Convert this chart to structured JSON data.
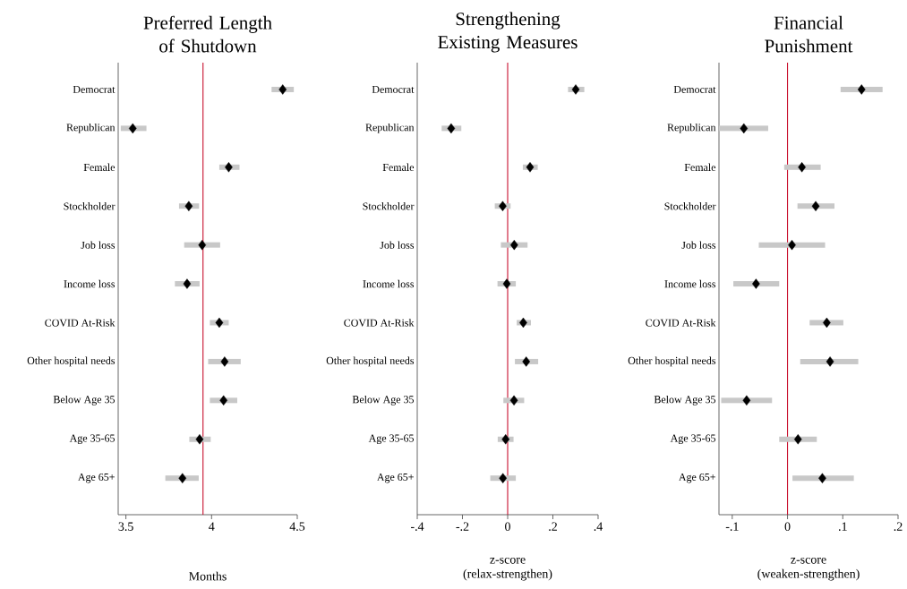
{
  "chart_data": [
    {
      "type": "scatter",
      "orientation": "horizontal",
      "title": "Preferred Length of Shutdown",
      "xlabel": "Months",
      "marker": "diamond",
      "color": "#000000",
      "categories": [
        "Democrat",
        "Republican",
        "Female",
        "Stockholder",
        "Job loss",
        "Income loss",
        "COVID At-Risk",
        "Other hospital needs",
        "Below Age 35",
        "Age 35-65",
        "Age 65+"
      ],
      "values": [
        4.415,
        3.54,
        4.1,
        3.867,
        3.945,
        3.857,
        4.045,
        4.076,
        4.07,
        3.93,
        3.83
      ],
      "errors": [
        [
          4.35,
          4.48
        ],
        [
          3.47,
          3.62
        ],
        [
          4.045,
          4.163
        ],
        [
          3.81,
          3.927
        ],
        [
          3.84,
          4.05
        ],
        [
          3.786,
          3.93
        ],
        [
          3.99,
          4.1
        ],
        [
          3.98,
          4.17
        ],
        [
          3.99,
          4.15
        ],
        [
          3.87,
          3.995
        ],
        [
          3.73,
          3.925
        ]
      ],
      "xlim": [
        3.455,
        4.5
      ],
      "xticks": [
        3.5,
        4,
        4.5
      ],
      "ref_lines": [
        {
          "axis": "x",
          "value": 3.95,
          "color": "#c8102e"
        }
      ]
    },
    {
      "type": "scatter",
      "orientation": "horizontal",
      "title": "Strengthening Existing Measures",
      "xlabel": "z-score (relax-strengthen)",
      "marker": "diamond",
      "color": "#000000",
      "categories": [
        "Democrat",
        "Republican",
        "Female",
        "Stockholder",
        "Job loss",
        "Income loss",
        "COVID At-Risk",
        "Other hospital needs",
        "Below Age 35",
        "Age 35-65",
        "Age 65+"
      ],
      "values": [
        0.301,
        -0.25,
        0.099,
        -0.022,
        0.029,
        -0.004,
        0.069,
        0.082,
        0.028,
        -0.009,
        -0.021
      ],
      "errors": [
        [
          0.267,
          0.339
        ],
        [
          -0.292,
          -0.205
        ],
        [
          0.067,
          0.133
        ],
        [
          -0.057,
          0.013
        ],
        [
          -0.03,
          0.088
        ],
        [
          -0.045,
          0.036
        ],
        [
          0.04,
          0.103
        ],
        [
          0.032,
          0.135
        ],
        [
          -0.019,
          0.073
        ],
        [
          -0.044,
          0.026
        ],
        [
          -0.077,
          0.036
        ]
      ],
      "xlim": [
        -0.4,
        0.4
      ],
      "xticks": [
        {
          "value": -0.4,
          "label": "-.4"
        },
        {
          "value": -0.2,
          "label": "-.2"
        },
        0,
        {
          "value": 0.2,
          "label": ".2"
        },
        {
          "value": 0.4,
          "label": ".4"
        }
      ],
      "ref_lines": [
        {
          "axis": "x",
          "value": 0,
          "color": "#c8102e"
        }
      ]
    },
    {
      "type": "scatter",
      "orientation": "horizontal",
      "title": "Financial Punishment",
      "xlabel": "z-score (weaken-strengthen)",
      "marker": "diamond",
      "color": "#000000",
      "categories": [
        "Democrat",
        "Republican",
        "Female",
        "Stockholder",
        "Job loss",
        "Income loss",
        "COVID At-Risk",
        "Other hospital needs",
        "Below Age 35",
        "Age 35-65",
        "Age 65+"
      ],
      "values": [
        0.134,
        -0.079,
        0.026,
        0.051,
        0.008,
        -0.057,
        0.071,
        0.077,
        -0.074,
        0.019,
        0.063
      ],
      "errors": [
        [
          0.096,
          0.172
        ],
        [
          -0.124,
          -0.035
        ],
        [
          -0.006,
          0.06
        ],
        [
          0.018,
          0.085
        ],
        [
          -0.052,
          0.068
        ],
        [
          -0.098,
          -0.015
        ],
        [
          0.04,
          0.101
        ],
        [
          0.023,
          0.128
        ],
        [
          -0.12,
          -0.028
        ],
        [
          -0.015,
          0.053
        ],
        [
          0.009,
          0.12
        ]
      ],
      "xlim": [
        -0.124,
        0.2
      ],
      "xticks": [
        {
          "value": -0.1,
          "label": "-.1"
        },
        0,
        {
          "value": 0.1,
          "label": ".1"
        },
        {
          "value": 0.2,
          "label": ".2"
        }
      ],
      "ref_lines": [
        {
          "axis": "x",
          "value": 0,
          "color": "#c8102e"
        }
      ]
    }
  ]
}
